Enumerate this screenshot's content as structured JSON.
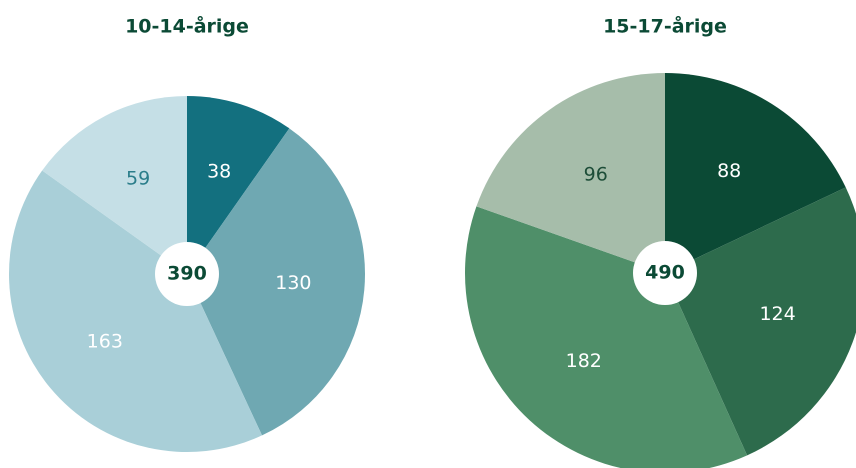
{
  "chart_data": [
    {
      "type": "pie",
      "title": "10-14-årige",
      "total": 390,
      "categories": [
        null,
        null,
        null,
        null
      ],
      "values": [
        38,
        130,
        163,
        59
      ],
      "colors": [
        "#13707f",
        "#6fa8b2",
        "#a9cfd8",
        "#c5dfe6"
      ],
      "label_colors": [
        "#ffffff",
        "#ffffff",
        "#ffffff",
        "#2a7d8a"
      ]
    },
    {
      "type": "pie",
      "title": "15-17-årige",
      "total": 490,
      "categories": [
        null,
        null,
        null,
        null
      ],
      "values": [
        88,
        124,
        182,
        96
      ],
      "colors": [
        "#0b4a35",
        "#2d6b4c",
        "#4f8f69",
        "#a6bdaa"
      ],
      "label_colors": [
        "#ffffff",
        "#ffffff",
        "#ffffff",
        "#1d4d38"
      ]
    }
  ]
}
